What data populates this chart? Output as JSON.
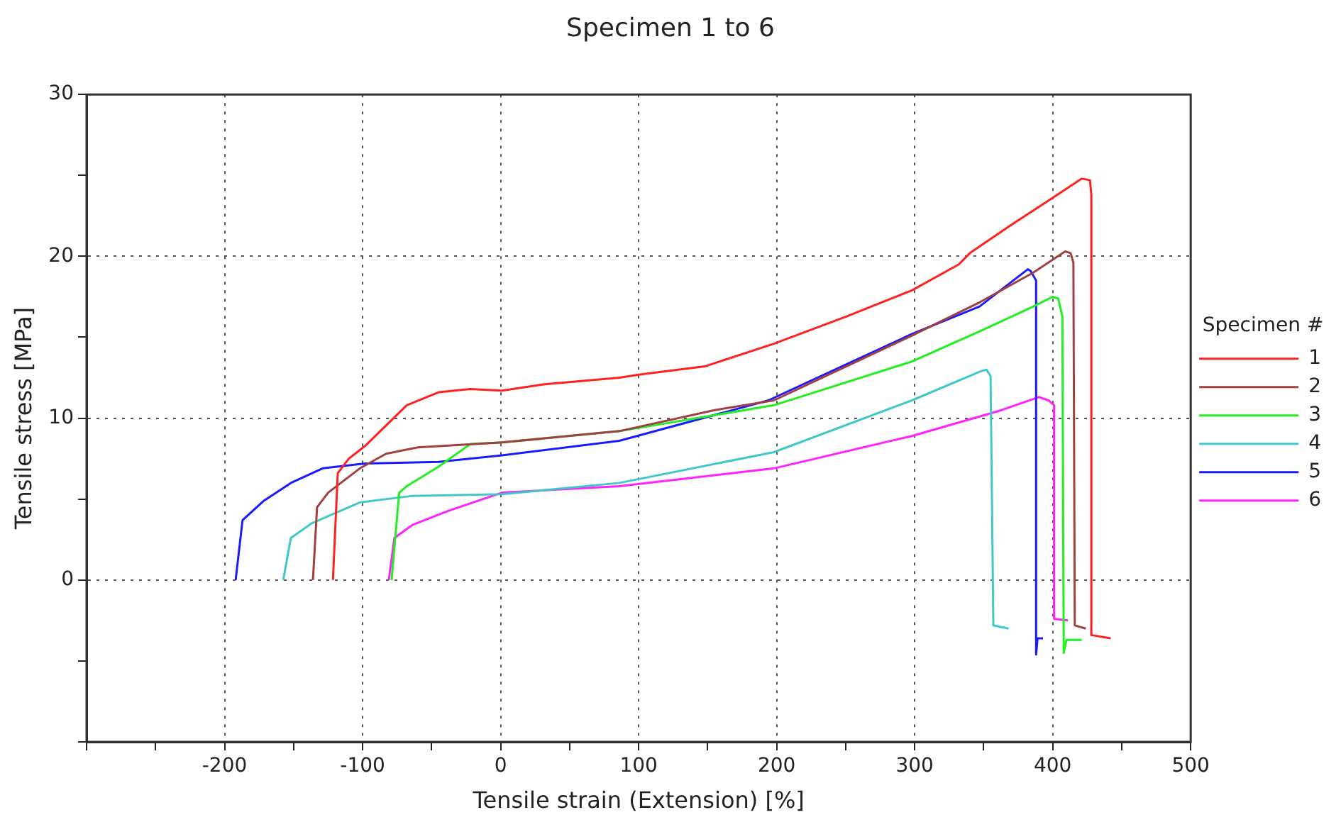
{
  "chart_data": {
    "type": "line",
    "title": "Specimen 1 to 6",
    "xlabel": "Tensile strain (Extension) [%]",
    "ylabel": "Tensile stress [MPa]",
    "legend_title": "Specimen #",
    "legend": "right",
    "grid": true,
    "marker": "none",
    "line_style": "solid",
    "xlim": [
      -300,
      500
    ],
    "xticks": [
      {
        "value": -300,
        "label": null
      },
      {
        "value": -250,
        "label": null
      },
      -200,
      {
        "value": -150,
        "label": null
      },
      -100,
      {
        "value": -50,
        "label": null
      },
      0,
      {
        "value": 50,
        "label": null
      },
      100,
      {
        "value": 150,
        "label": null
      },
      200,
      {
        "value": 250,
        "label": null
      },
      300,
      {
        "value": 350,
        "label": null
      },
      400,
      {
        "value": 450,
        "label": null
      },
      500
    ],
    "ylim": [
      -10,
      30
    ],
    "yticks": [
      {
        "value": -10,
        "label": null
      },
      {
        "value": -5,
        "label": null
      },
      0,
      {
        "value": 5,
        "label": null
      },
      10,
      {
        "value": 15,
        "label": null
      },
      20,
      {
        "value": 25,
        "label": null
      },
      30
    ],
    "series": [
      {
        "name": "1",
        "color": "#ff2020",
        "x": [
          -121.5,
          -118,
          -110,
          -98,
          -68,
          -45,
          -22,
          1,
          32,
          86,
          101,
          148,
          198,
          251,
          298,
          332,
          340,
          371,
          398,
          421,
          427,
          428,
          428,
          442
        ],
        "values": [
          0,
          6.6,
          7.5,
          8.3,
          10.8,
          11.6,
          11.8,
          11.7,
          12.1,
          12.5,
          12.7,
          13.2,
          14.6,
          16.3,
          17.9,
          19.5,
          20.2,
          22,
          23.5,
          24.8,
          24.7,
          23.8,
          -3.4,
          -3.6
        ]
      },
      {
        "name": "2",
        "color": "#a04040",
        "x": [
          -136,
          -133,
          -125,
          -102,
          -83,
          -60,
          1,
          86,
          155,
          198,
          298,
          348,
          386,
          409,
          413,
          415,
          416,
          424
        ],
        "values": [
          0,
          4.5,
          5.4,
          6.9,
          7.8,
          8.2,
          8.5,
          9.2,
          10.5,
          11.1,
          15.1,
          17.2,
          19,
          20.3,
          20.2,
          19.6,
          -2.8,
          -3
        ]
      },
      {
        "name": "3",
        "color": "#22ee22",
        "x": [
          -79,
          -73.5,
          -68,
          -45,
          -22,
          1,
          86,
          198,
          298,
          348,
          386,
          400,
          404,
          407,
          408,
          410,
          421
        ],
        "values": [
          0,
          5.4,
          5.8,
          7,
          8.4,
          8.5,
          9.2,
          10.8,
          13.5,
          15.4,
          16.9,
          17.5,
          17.4,
          16.3,
          -4.5,
          -3.7,
          -3.7
        ]
      },
      {
        "name": "4",
        "color": "#40c8c8",
        "x": [
          -157.5,
          -152,
          -137,
          -102,
          -64,
          1,
          86,
          198,
          298,
          348,
          352,
          355,
          357,
          368
        ],
        "values": [
          0,
          2.6,
          3.5,
          4.8,
          5.2,
          5.3,
          6,
          7.9,
          11.1,
          12.9,
          13,
          12.6,
          -2.8,
          -3
        ]
      },
      {
        "name": "5",
        "color": "#1a1aff",
        "x": [
          -192,
          -187,
          -171.5,
          -152,
          -129,
          -98,
          -45,
          1,
          86,
          194,
          298,
          347,
          382,
          384,
          388,
          388,
          389,
          393
        ],
        "values": [
          0,
          3.7,
          4.9,
          6,
          6.9,
          7.2,
          7.3,
          7.7,
          8.6,
          11.1,
          15.2,
          16.9,
          19.2,
          19.1,
          18.5,
          -4.6,
          -3.6,
          -3.6
        ]
      },
      {
        "name": "6",
        "color": "#ff22ff",
        "x": [
          -81,
          -77,
          -64,
          -37,
          1,
          86,
          198,
          298,
          363,
          390,
          397,
          401,
          401,
          411
        ],
        "values": [
          0,
          2.6,
          3.4,
          4.3,
          5.4,
          5.8,
          6.9,
          8.9,
          10.5,
          11.3,
          11.1,
          10.8,
          -2.4,
          -2.5
        ]
      }
    ]
  }
}
